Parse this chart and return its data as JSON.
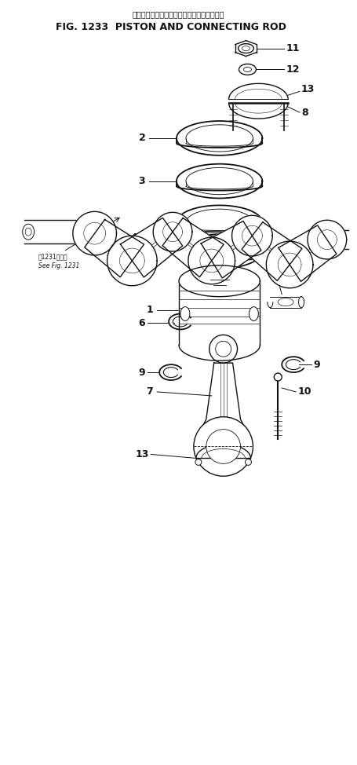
{
  "title_japanese": "ピストン・および・コネクティング・ロッド",
  "title_english": "FIG. 1233  PISTON AND CONNECTING ROD",
  "bg_color": "#ffffff",
  "line_color": "#111111",
  "text_color": "#111111",
  "fig_width": 4.55,
  "fig_height": 9.74,
  "dpi": 100,
  "note_text1": "前1231図参照",
  "note_text2": "See Fig. 1231"
}
